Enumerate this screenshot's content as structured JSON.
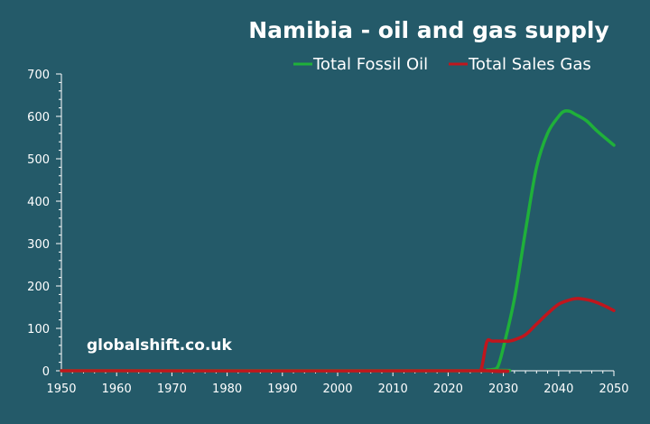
{
  "chart_data": {
    "type": "line",
    "title": "Namibia - oil and gas supply",
    "xlabel": "",
    "ylabel": "",
    "xlim": [
      1950,
      2050
    ],
    "ylim": [
      0,
      700
    ],
    "x_ticks": [
      "1950",
      "1960",
      "1970",
      "1980",
      "1990",
      "2000",
      "2010",
      "2020",
      "2030",
      "2040",
      "2050"
    ],
    "y_ticks": [
      "0",
      "100",
      "200",
      "300",
      "400",
      "500",
      "600",
      "700"
    ],
    "grid": false,
    "legend_position": "top-right",
    "watermark": "globalshift.co.uk",
    "series": [
      {
        "name": "Total Fossil Oil",
        "color": "#1fb03a",
        "x": [
          1950,
          2025,
          2027,
          2028,
          2029,
          2030,
          2032,
          2034,
          2036,
          2038,
          2040,
          2041,
          2042,
          2043,
          2045,
          2047,
          2050
        ],
        "y": [
          0,
          0,
          2,
          3,
          10,
          55,
          170,
          330,
          480,
          560,
          600,
          612,
          612,
          605,
          590,
          565,
          532
        ]
      },
      {
        "name": "Total Sales Gas",
        "color": "#c0161d",
        "x": [
          1950,
          2025,
          2026,
          2027,
          2028,
          2030,
          2031,
          2032,
          2034,
          2036,
          2038,
          2040,
          2042,
          2043,
          2044,
          2046,
          2048,
          2050
        ],
        "y": [
          0,
          0,
          5,
          68,
          70,
          70,
          70,
          73,
          85,
          110,
          135,
          157,
          167,
          170,
          170,
          165,
          155,
          142
        ]
      }
    ]
  }
}
